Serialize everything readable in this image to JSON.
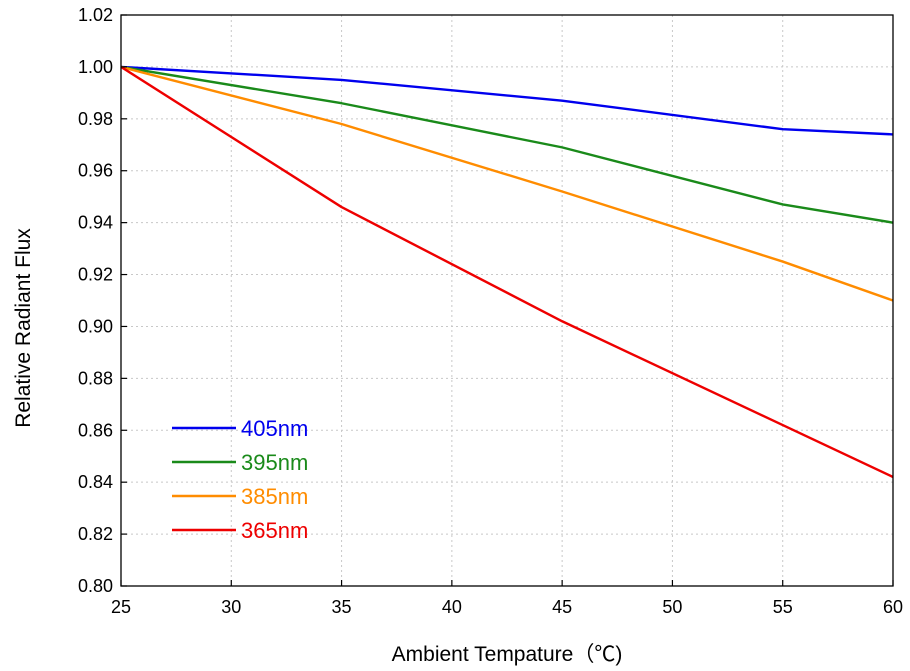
{
  "chart_data": {
    "type": "line",
    "xlabel": "Ambient Tempature（℃)",
    "ylabel": "Relative Radiant Flux",
    "xlim": [
      25,
      60
    ],
    "ylim": [
      0.8,
      1.02
    ],
    "xticks": [
      "25",
      "30",
      "35",
      "40",
      "45",
      "50",
      "55",
      "60"
    ],
    "yticks": [
      "0.80",
      "0.82",
      "0.84",
      "0.86",
      "0.88",
      "0.90",
      "0.92",
      "0.94",
      "0.96",
      "0.98",
      "1.00",
      "1.02"
    ],
    "grid": true,
    "legend_position": "bottom-left",
    "series": [
      {
        "name": "405nm",
        "color": "#0000ee",
        "x": [
          25,
          35,
          45,
          55,
          60
        ],
        "y": [
          1.0,
          0.995,
          0.987,
          0.976,
          0.974
        ]
      },
      {
        "name": "395nm",
        "color": "#1a8a1a",
        "x": [
          25,
          35,
          45,
          55,
          60
        ],
        "y": [
          1.0,
          0.986,
          0.969,
          0.947,
          0.94
        ]
      },
      {
        "name": "385nm",
        "color": "#ff8c00",
        "x": [
          25,
          35,
          45,
          55,
          60
        ],
        "y": [
          1.0,
          0.978,
          0.952,
          0.925,
          0.91
        ]
      },
      {
        "name": "365nm",
        "color": "#ee0000",
        "x": [
          25,
          35,
          45,
          55,
          60
        ],
        "y": [
          1.0,
          0.946,
          0.902,
          0.862,
          0.842
        ]
      }
    ]
  }
}
